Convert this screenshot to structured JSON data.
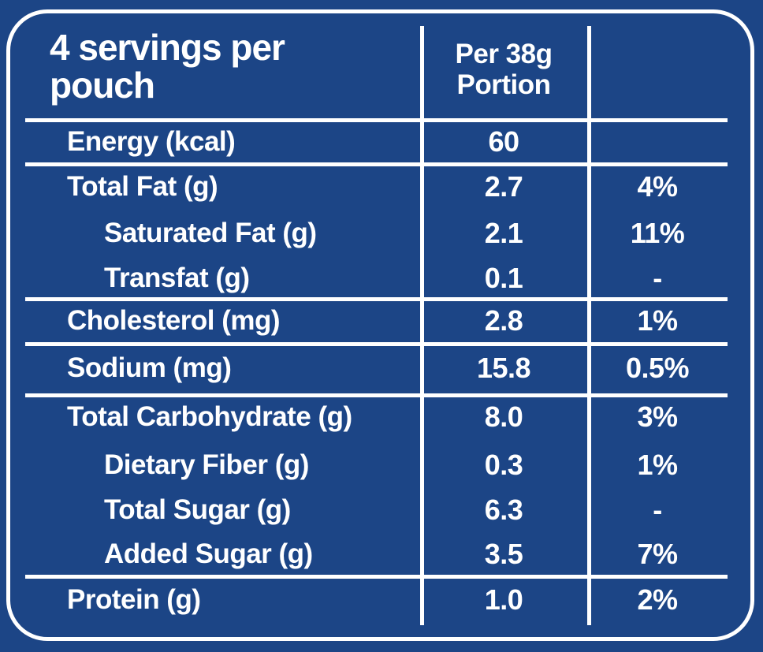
{
  "label": {
    "colors": {
      "background": "#1c4586",
      "text": "#ffffff",
      "rules": "#ffffff"
    },
    "header": {
      "servings": "4 servings per pouch",
      "portion_column": "Per 38g Portion",
      "dv_column": ""
    },
    "rows": [
      {
        "label": "Energy (kcal)",
        "value": "60",
        "pct": ""
      },
      {
        "label": "Total Fat (g)",
        "value": "2.7",
        "pct": "4%"
      },
      {
        "label": "Saturated Fat  (g)",
        "value": "2.1",
        "pct": "11%"
      },
      {
        "label": "Transfat (g)",
        "value": "0.1",
        "pct": "-"
      },
      {
        "label": "Cholesterol (mg)",
        "value": "2.8",
        "pct": "1%"
      },
      {
        "label": "Sodium (mg)",
        "value": "15.8",
        "pct": "0.5%"
      },
      {
        "label": "Total Carbohydrate (g)",
        "value": "8.0",
        "pct": "3%"
      },
      {
        "label": "Dietary Fiber (g)",
        "value": "0.3",
        "pct": "1%"
      },
      {
        "label": "Total Sugar (g)",
        "value": "6.3",
        "pct": "-"
      },
      {
        "label": "Added Sugar (g)",
        "value": "3.5",
        "pct": "7%"
      },
      {
        "label": "Protein (g)",
        "value": "1.0",
        "pct": "2%"
      }
    ]
  }
}
